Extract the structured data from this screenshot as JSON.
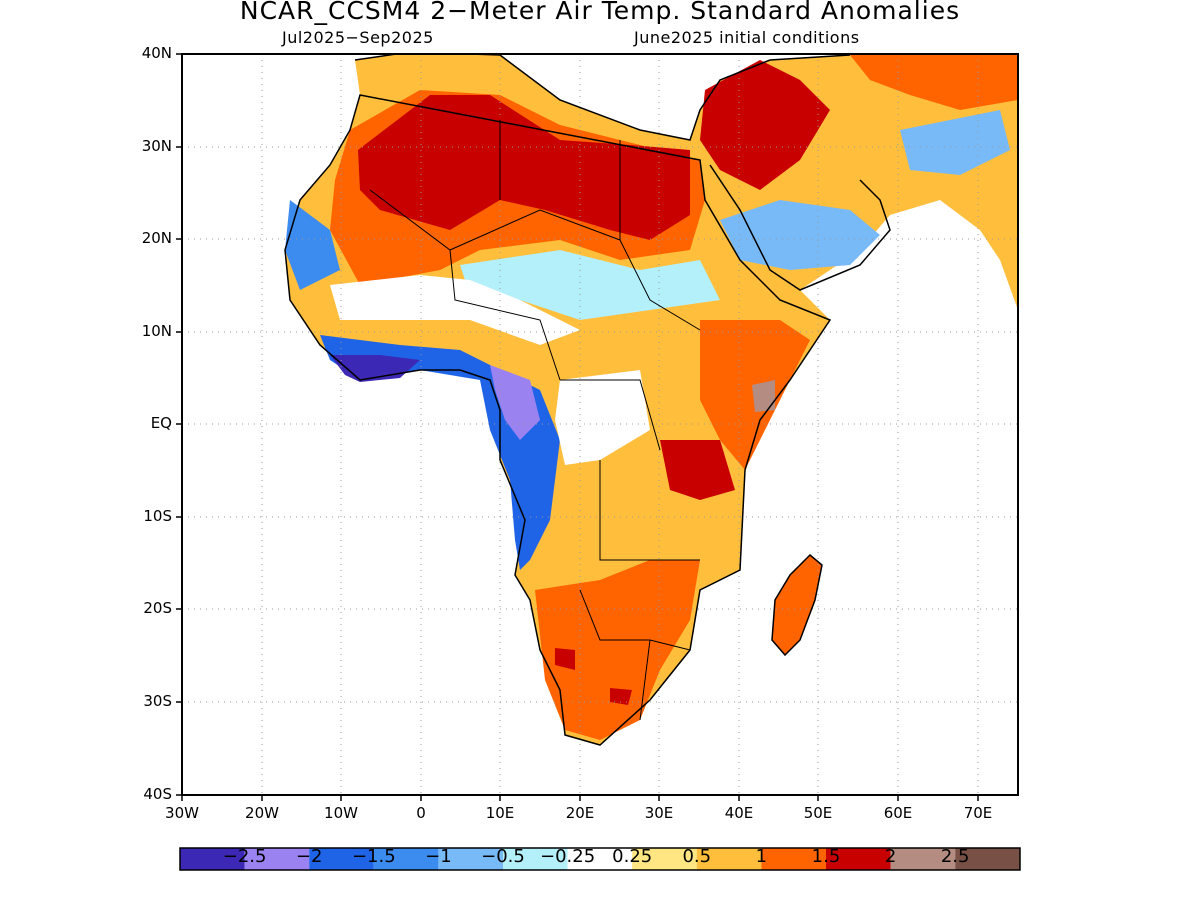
{
  "title": "NCAR_CCSM4 2−Meter Air Temp. Standard Anomalies",
  "subtitle_left": "Jul2025−Sep2025",
  "subtitle_right": "June2025 initial conditions",
  "map": {
    "region": "Africa",
    "lat_range": [
      -40,
      40
    ],
    "lon_range": [
      -30,
      75
    ],
    "grid": true,
    "lat_ticks": [
      "40N",
      "30N",
      "20N",
      "10N",
      "EQ",
      "10S",
      "20S",
      "30S",
      "40S"
    ],
    "lon_ticks": [
      "30W",
      "20W",
      "10W",
      "0",
      "10E",
      "20E",
      "30E",
      "40E",
      "50E",
      "60E",
      "70E"
    ]
  },
  "colorbar": {
    "colors": [
      "#3b28b4",
      "#9a82f0",
      "#1f64e6",
      "#3c8cf0",
      "#78b9f8",
      "#b4f0fa",
      "#ffffff",
      "#ffe682",
      "#ffbe3c",
      "#ff6400",
      "#c80000",
      "#b48c82",
      "#785046"
    ],
    "labels": [
      "−2.5",
      "−2",
      "−1.5",
      "−1",
      "−0.5",
      "−0.25",
      "0.25",
      "0.5",
      "1",
      "1.5",
      "2",
      "2.5"
    ]
  }
}
